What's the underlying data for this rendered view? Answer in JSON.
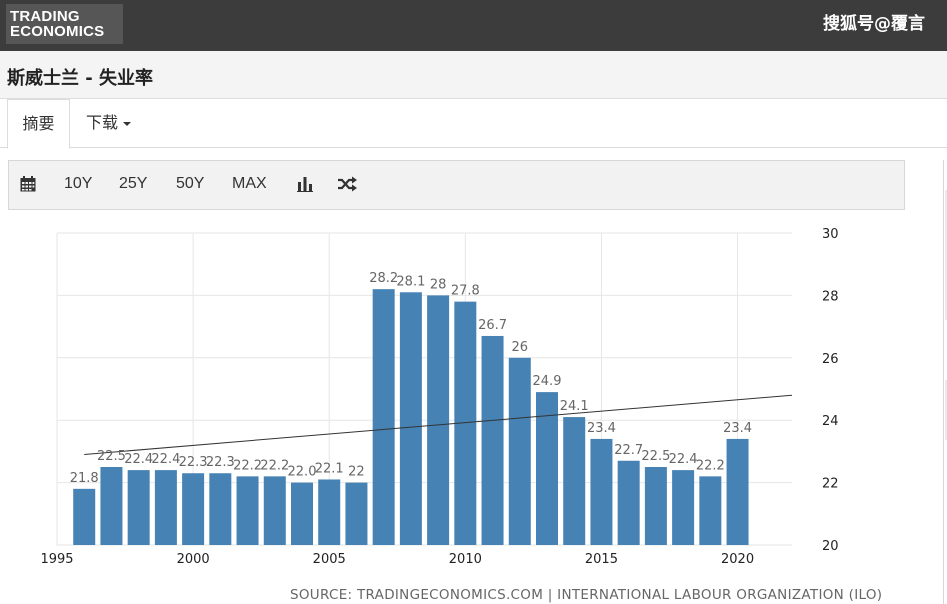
{
  "header": {
    "logo_line1": "TRADING",
    "logo_line2": "ECONOMICS",
    "watermark": "搜狐号@覆言"
  },
  "page": {
    "title": "斯威士兰 - 失业率"
  },
  "tabs": {
    "summary": "摘要",
    "download": "下载"
  },
  "toolbar": {
    "r10y": "10Y",
    "r25y": "25Y",
    "r50y": "50Y",
    "max": "MAX"
  },
  "icons": [
    "calendar-icon",
    "bar-chart-icon",
    "shuffle-icon",
    "caret-down-icon"
  ],
  "colors": {
    "bar": "#4682b4",
    "header_bg": "#3c3c3c",
    "trend": "#333333"
  },
  "chart_data": {
    "type": "bar",
    "x": [
      1996,
      1997,
      1998,
      1999,
      2000,
      2001,
      2002,
      2003,
      2004,
      2005,
      2006,
      2007,
      2008,
      2009,
      2010,
      2011,
      2012,
      2013,
      2014,
      2015,
      2016,
      2017,
      2018,
      2019,
      2020
    ],
    "series": [
      {
        "values": [
          21.8,
          22.5,
          22.4,
          22.4,
          22.3,
          22.3,
          22.2,
          22.2,
          22.0,
          22.1,
          22.0,
          28.2,
          28.1,
          28.0,
          27.8,
          26.7,
          26.0,
          24.9,
          24.1,
          23.4,
          22.7,
          22.5,
          22.4,
          22.2,
          23.4
        ],
        "labels": [
          "21.8",
          "22.5",
          "22.4",
          "22.4",
          "22.3",
          "22.3",
          "22.2",
          "22.2",
          "22.0",
          "22.1",
          "22",
          "28.2",
          "28.1",
          "28",
          "27.8",
          "26.7",
          "26",
          "24.9",
          "24.1",
          "23.4",
          "22.7",
          "22.5",
          "22.4",
          "22.2",
          "23.4"
        ]
      }
    ],
    "trend_line": {
      "start": [
        1996,
        22.9
      ],
      "end": [
        2022,
        24.8
      ]
    },
    "xticks": [
      "1995",
      "2000",
      "2005",
      "2010",
      "2015",
      "2020"
    ],
    "yticks": [
      "20",
      "22",
      "24",
      "26",
      "28",
      "30"
    ],
    "xlim": [
      1995,
      2022
    ],
    "ylim": [
      20,
      30
    ],
    "grid": true,
    "y_axis_side": "right",
    "source": "SOURCE: TRADINGECONOMICS.COM | INTERNATIONAL LABOUR ORGANIZATION (ILO)"
  }
}
